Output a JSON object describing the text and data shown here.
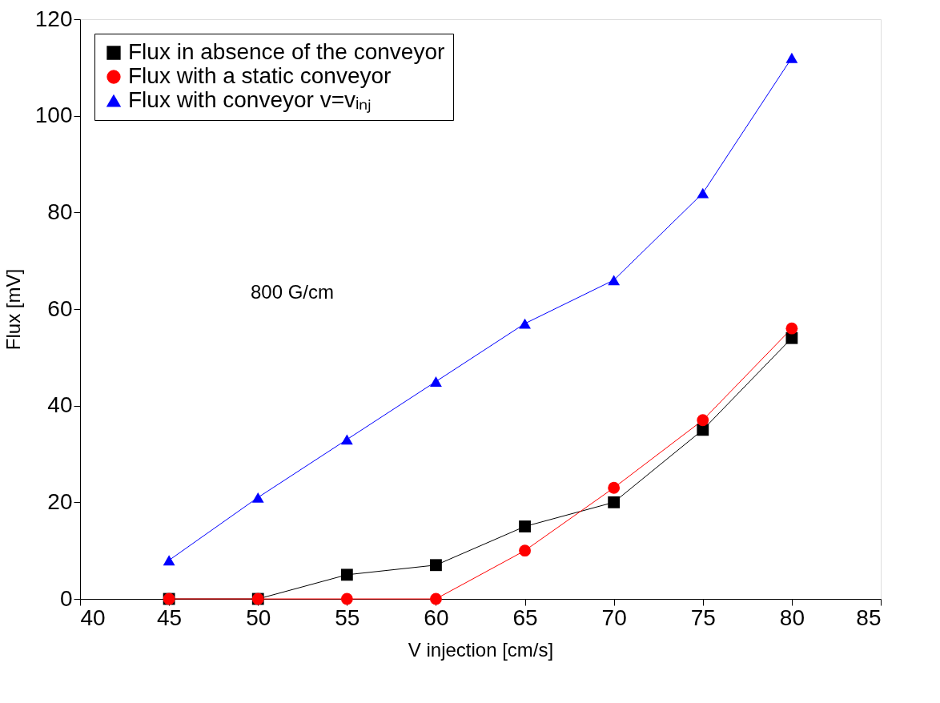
{
  "chart_data": {
    "type": "line",
    "xlabel": "V injection [cm/s]",
    "ylabel": "Flux [mV]",
    "x": [
      45,
      50,
      55,
      60,
      65,
      70,
      75,
      80
    ],
    "series": [
      {
        "name": "Flux in absence of the conveyor",
        "color": "#000000",
        "marker": "square",
        "values": [
          0,
          0,
          5,
          7,
          15,
          20,
          35,
          54
        ]
      },
      {
        "name": "Flux with a static conveyor",
        "color": "#ff0000",
        "marker": "circle",
        "values": [
          0,
          0,
          0,
          0,
          10,
          23,
          37,
          56
        ]
      },
      {
        "name": "Flux with conveyor v=vᵢₙⱼ",
        "color": "#0000ff",
        "marker": "triangle",
        "values": [
          8,
          21,
          33,
          45,
          57,
          66,
          84,
          112
        ]
      }
    ],
    "xlim": [
      40,
      85
    ],
    "xticks": [
      40,
      45,
      50,
      55,
      60,
      65,
      70,
      75,
      80,
      85
    ],
    "ylim": [
      0,
      120
    ],
    "yticks": [
      0,
      20,
      40,
      60,
      80,
      100,
      120
    ],
    "grid": false,
    "legend": "top left",
    "line_style": "solid",
    "annotations": [
      "800 G/cm"
    ]
  }
}
